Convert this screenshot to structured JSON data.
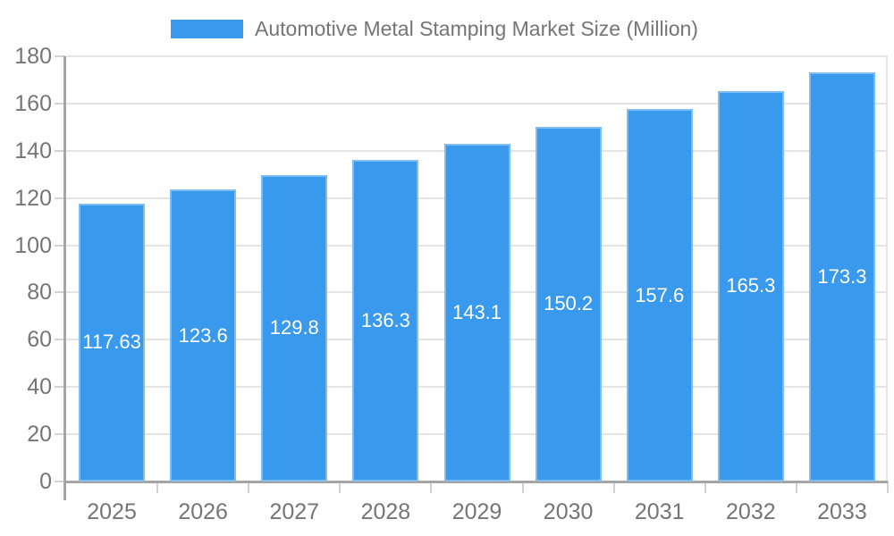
{
  "chart": {
    "legend_label": "Automotive Metal Stamping Market Size (Million)",
    "colors": {
      "bar": "#3999EC",
      "bar_value_text": "#FFFFFF",
      "axis_line": "#A5A5A5",
      "gridline": "#E4E4E4",
      "tick": "#D2D2D2",
      "label_text": "#757575",
      "background": "#FFFFFF"
    }
  },
  "chart_data": {
    "type": "bar",
    "title": "Automotive Metal Stamping Market Size (Million)",
    "categories": [
      "2025",
      "2026",
      "2027",
      "2028",
      "2029",
      "2030",
      "2031",
      "2032",
      "2033"
    ],
    "values": [
      117.63,
      123.6,
      129.8,
      136.3,
      143.1,
      150.2,
      157.6,
      165.3,
      173.3
    ],
    "value_labels": [
      "117.63",
      "123.6",
      "129.8",
      "136.3",
      "143.1",
      "150.2",
      "157.6",
      "165.3",
      "173.3"
    ],
    "xlabel": "",
    "ylabel": "",
    "ylim": [
      0,
      180
    ],
    "yticks": [
      0,
      20,
      40,
      60,
      80,
      100,
      120,
      140,
      160,
      180
    ],
    "grid": true,
    "legend_position": "top",
    "value_label_position": "center-inside"
  }
}
